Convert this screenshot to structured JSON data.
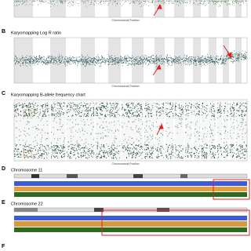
{
  "panels": [
    {
      "letter": "B",
      "title": "Karyomapping Log R ratio",
      "xlabel": "Chromosomal Position"
    },
    {
      "letter": "C",
      "title": "Karyomapping B-allele frequency chart",
      "xlabel": "Chromosomal Position"
    },
    {
      "letter": "D",
      "title": "Chromosome 11"
    },
    {
      "letter": "E",
      "title": "Chromosome 22"
    },
    {
      "letter": "F"
    }
  ],
  "top_xlabel": "Chromosomal Position"
}
